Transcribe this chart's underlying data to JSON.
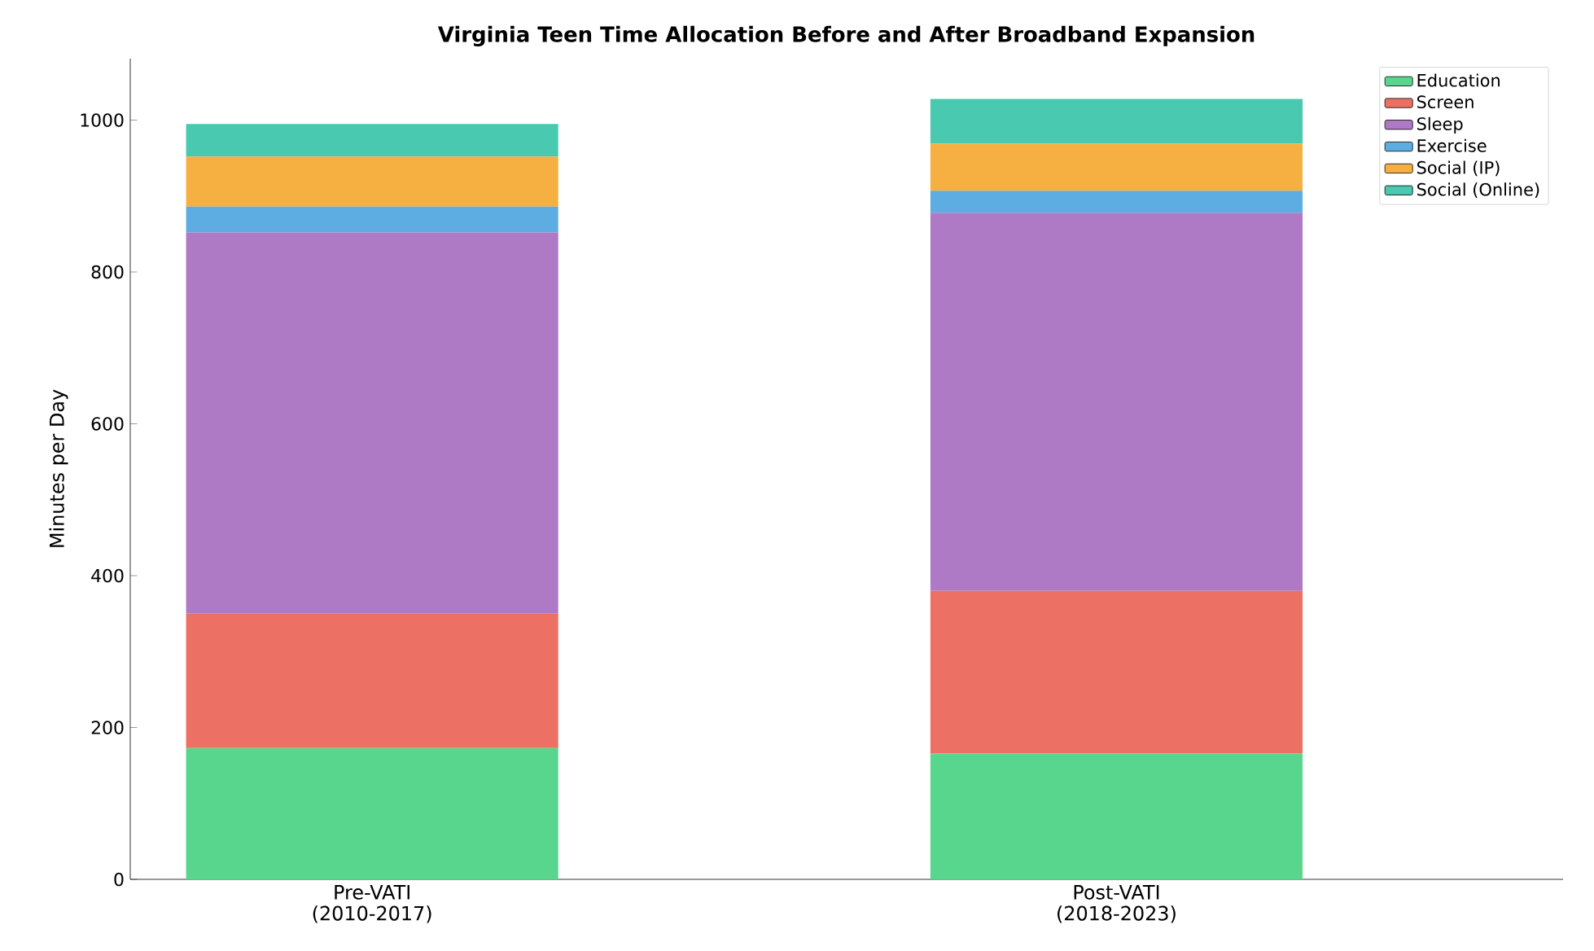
{
  "chart_data": {
    "type": "bar",
    "stacked": true,
    "title": "Virginia Teen Time Allocation Before and After Broadband Expansion",
    "ylabel": "Minutes per Day",
    "categories": [
      "Pre-VATI (2010-2017)",
      "Post-VATI (2018-2023)"
    ],
    "series": [
      {
        "name": "Education",
        "color": "#58d68d",
        "values": [
          173,
          166
        ]
      },
      {
        "name": "Screen",
        "color": "#ec7063",
        "values": [
          177,
          214
        ]
      },
      {
        "name": "Sleep",
        "color": "#af7ac5",
        "values": [
          502,
          498
        ]
      },
      {
        "name": "Exercise",
        "color": "#5dade2",
        "values": [
          34,
          29
        ]
      },
      {
        "name": "Social (IP)",
        "color": "#f5b041",
        "values": [
          66,
          62
        ]
      },
      {
        "name": "Social (Online)",
        "color": "#48c9b0",
        "values": [
          43,
          59
        ]
      }
    ],
    "ylim": [
      0,
      1081
    ],
    "yticks": [
      0,
      200,
      400,
      600,
      800,
      1000
    ],
    "grid": false,
    "legend": "top right"
  }
}
